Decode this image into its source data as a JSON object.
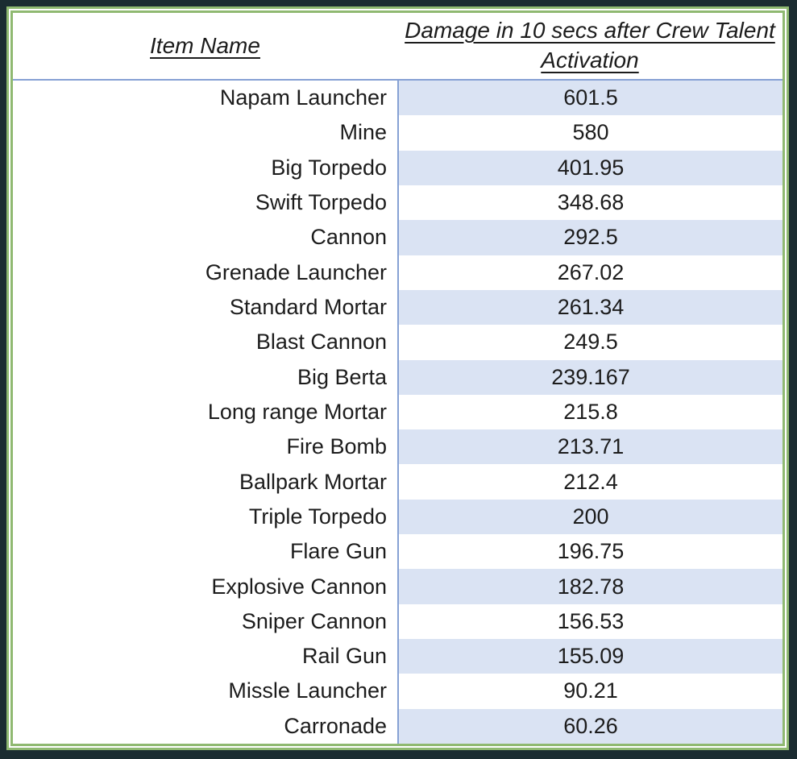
{
  "chart_data": {
    "type": "table",
    "columns": [
      "Item Name",
      "Damage in 10 secs after Crew Talent Activation"
    ],
    "rows": [
      [
        "Napam Launcher",
        601.5
      ],
      [
        "Mine",
        580
      ],
      [
        "Big Torpedo",
        401.95
      ],
      [
        "Swift Torpedo",
        348.68
      ],
      [
        "Cannon",
        292.5
      ],
      [
        "Grenade Launcher",
        267.02
      ],
      [
        "Standard Mortar",
        261.34
      ],
      [
        "Blast Cannon",
        249.5
      ],
      [
        "Big Berta",
        239.167
      ],
      [
        "Long range Mortar",
        215.8
      ],
      [
        "Fire Bomb",
        213.71
      ],
      [
        "Ballpark Mortar",
        212.4
      ],
      [
        "Triple Torpedo",
        200
      ],
      [
        "Flare Gun",
        196.75
      ],
      [
        "Explosive Cannon",
        182.78
      ],
      [
        "Sniper Cannon",
        156.53
      ],
      [
        "Rail Gun",
        155.09
      ],
      [
        "Missle Launcher",
        90.21
      ],
      [
        "Carronade",
        60.26
      ]
    ]
  },
  "table": {
    "columns": [
      {
        "label": "Item Name"
      },
      {
        "label": "Damage in 10 secs after Crew Talent Activation"
      }
    ],
    "rows": [
      {
        "name": "Napam Launcher",
        "damage": "601.5"
      },
      {
        "name": "Mine",
        "damage": "580"
      },
      {
        "name": "Big Torpedo",
        "damage": "401.95"
      },
      {
        "name": "Swift Torpedo",
        "damage": "348.68"
      },
      {
        "name": "Cannon",
        "damage": "292.5"
      },
      {
        "name": "Grenade Launcher",
        "damage": "267.02"
      },
      {
        "name": "Standard Mortar",
        "damage": "261.34"
      },
      {
        "name": "Blast Cannon",
        "damage": "249.5"
      },
      {
        "name": "Big Berta",
        "damage": "239.167"
      },
      {
        "name": "Long range Mortar",
        "damage": "215.8"
      },
      {
        "name": "Fire Bomb",
        "damage": "213.71"
      },
      {
        "name": "Ballpark Mortar",
        "damage": "212.4"
      },
      {
        "name": "Triple Torpedo",
        "damage": "200"
      },
      {
        "name": "Flare Gun",
        "damage": "196.75"
      },
      {
        "name": "Explosive Cannon",
        "damage": "182.78"
      },
      {
        "name": "Sniper Cannon",
        "damage": "156.53"
      },
      {
        "name": "Rail Gun",
        "damage": "155.09"
      },
      {
        "name": "Missle Launcher",
        "damage": "90.21"
      },
      {
        "name": "Carronade",
        "damage": "60.26"
      }
    ]
  },
  "colors": {
    "page_background": "#1b2c31",
    "table_border_green": "#8fb971",
    "grid_border_blue": "#86a1d4",
    "row_fill_blue": "#dae3f3",
    "text": "#1c1c1c"
  }
}
